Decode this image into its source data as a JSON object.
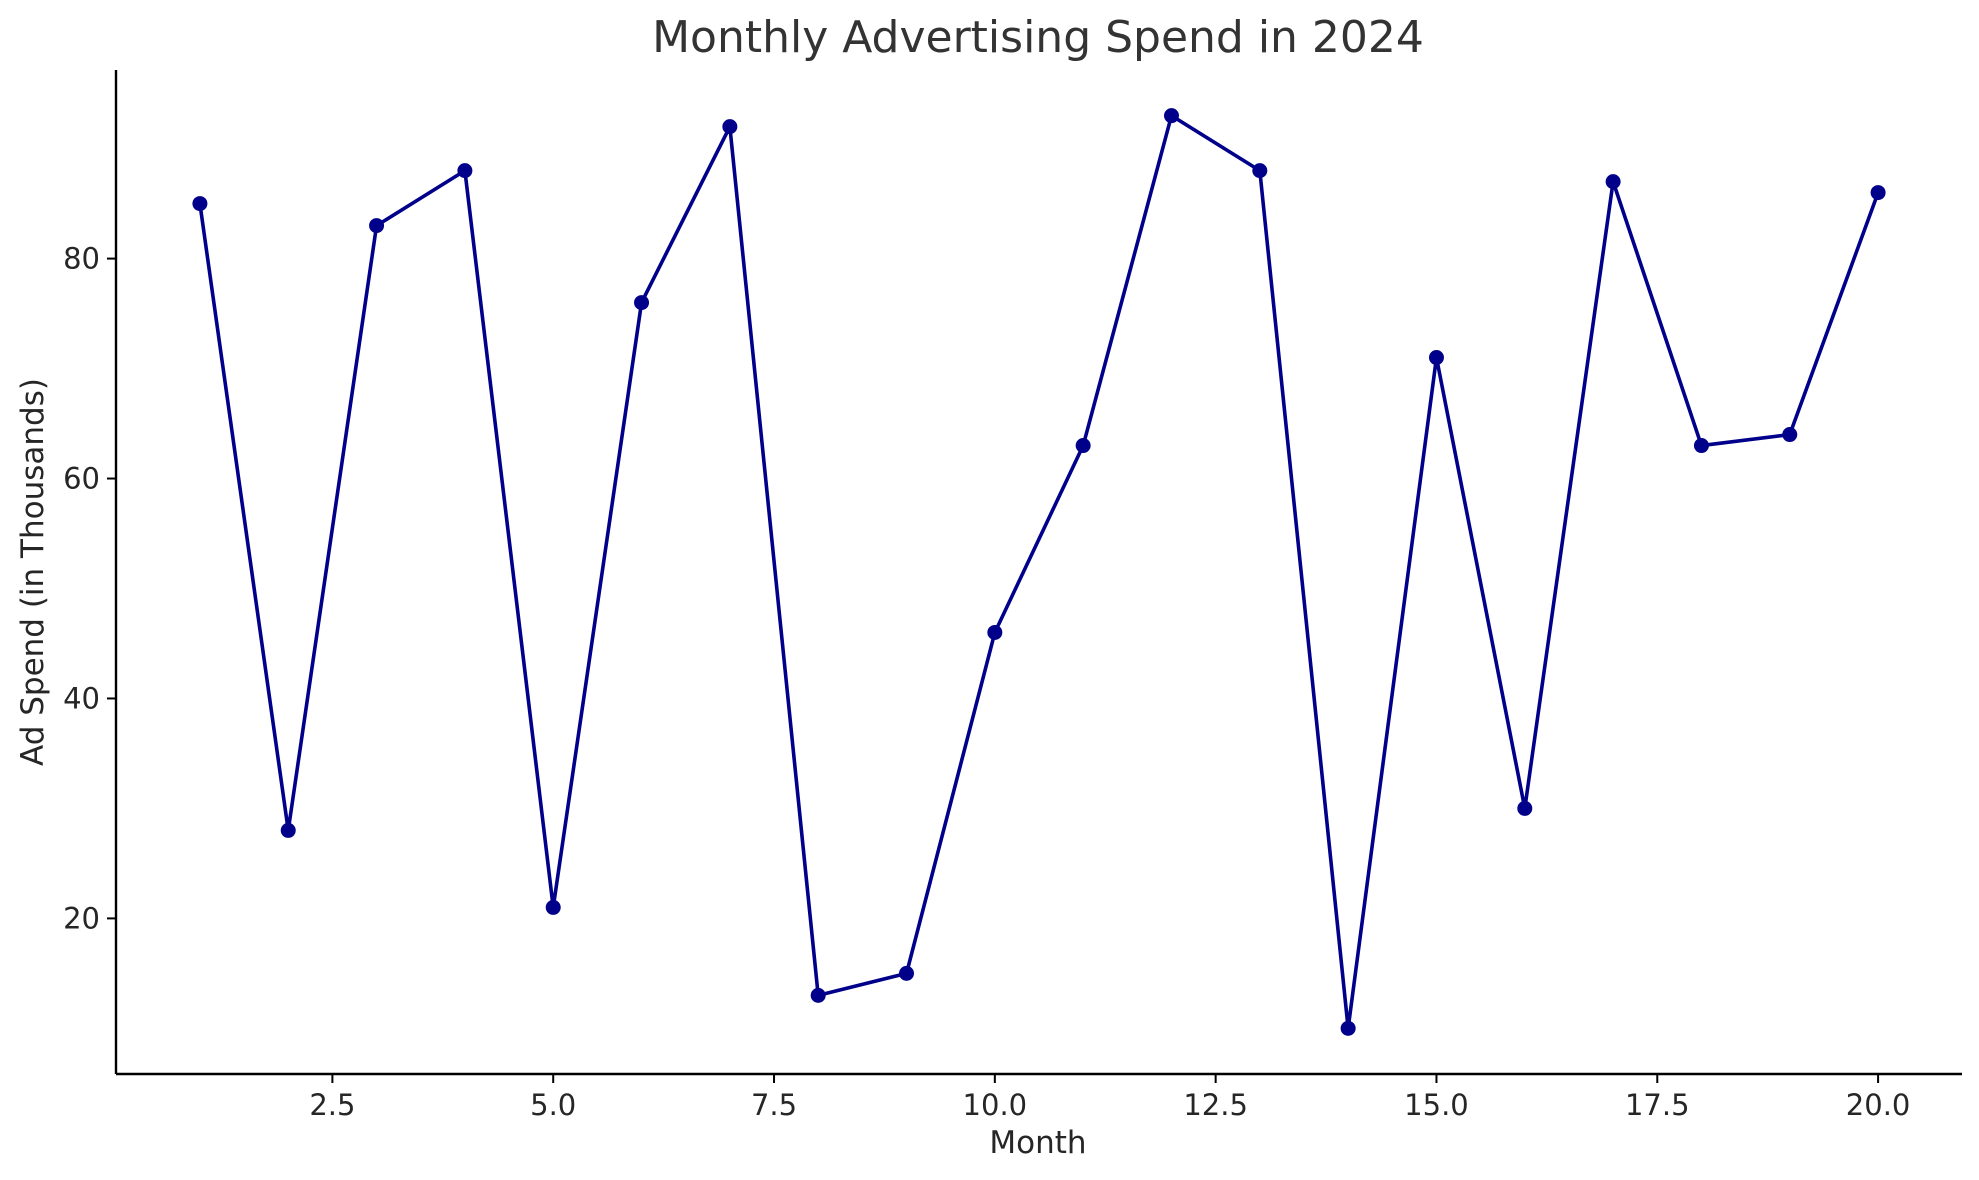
{
  "chart_data": {
    "type": "line",
    "title": "Monthly Advertising Spend in 2024",
    "xlabel": "Month",
    "ylabel": "Ad Spend (in Thousands)",
    "xlim": [
      0.05,
      20.95
    ],
    "ylim": [
      5.85,
      97.15
    ],
    "xticks": [
      2.5,
      5.0,
      7.5,
      10.0,
      12.5,
      15.0,
      17.5,
      20.0
    ],
    "xtick_labels": [
      "2.5",
      "5.0",
      "7.5",
      "10.0",
      "12.5",
      "15.0",
      "17.5",
      "20.0"
    ],
    "yticks": [
      20,
      40,
      60,
      80
    ],
    "ytick_labels": [
      "20",
      "40",
      "60",
      "80"
    ],
    "grid": false,
    "legend": "none",
    "x": [
      1,
      2,
      3,
      4,
      5,
      6,
      7,
      8,
      9,
      10,
      11,
      12,
      13,
      14,
      15,
      16,
      17,
      18,
      19,
      20
    ],
    "series": [
      {
        "values": [
          85,
          28,
          83,
          88,
          21,
          76,
          92,
          13,
          15,
          46,
          63,
          93,
          88,
          10,
          71,
          30,
          87,
          63,
          64,
          86
        ],
        "color": "#00008b",
        "marker": "circle"
      }
    ]
  }
}
